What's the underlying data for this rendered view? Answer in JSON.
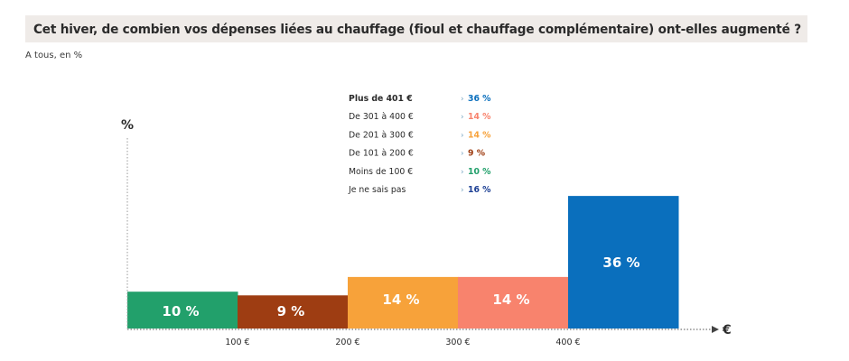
{
  "title": "Cet hiver, de combien vos dépenses liées au chauffage (fioul et chauffage complémentaire) ont-elles augmenté ?",
  "subtitle": "A tous, en %",
  "chart_data": {
    "type": "bar",
    "y_axis_label": "%",
    "x_axis_label": "€",
    "x_ticks": [
      "100 €",
      "200 €",
      "300 €",
      "400 €"
    ],
    "bars": [
      {
        "label": "10 %",
        "value": 10,
        "color": "#22a06b"
      },
      {
        "label": "9 %",
        "value": 9,
        "color": "#9e3d12"
      },
      {
        "label": "14 %",
        "value": 14,
        "color": "#f7a23a"
      },
      {
        "label": "14 %",
        "value": 14,
        "color": "#f8836d"
      },
      {
        "label": "36 %",
        "value": 36,
        "color": "#0a6fbd"
      }
    ],
    "legend": [
      {
        "name": "Plus de 401 €",
        "value": "36 %",
        "color": "#0a6fbd",
        "bold": true
      },
      {
        "name": "De 301 à 400 €",
        "value": "14 %",
        "color": "#f8836d",
        "bold": false
      },
      {
        "name": "De 201 à 300 €",
        "value": "14 %",
        "color": "#f7a23a",
        "bold": false
      },
      {
        "name": "De 101 à 200 €",
        "value": "9 %",
        "color": "#9e3d12",
        "bold": false
      },
      {
        "name": "Moins de 100 €",
        "value": "10 %",
        "color": "#22a06b",
        "bold": false
      },
      {
        "name": "Je ne sais pas",
        "value": "16 %",
        "color": "#1c3f94",
        "bold": false
      }
    ],
    "legend_arrow": "›"
  }
}
